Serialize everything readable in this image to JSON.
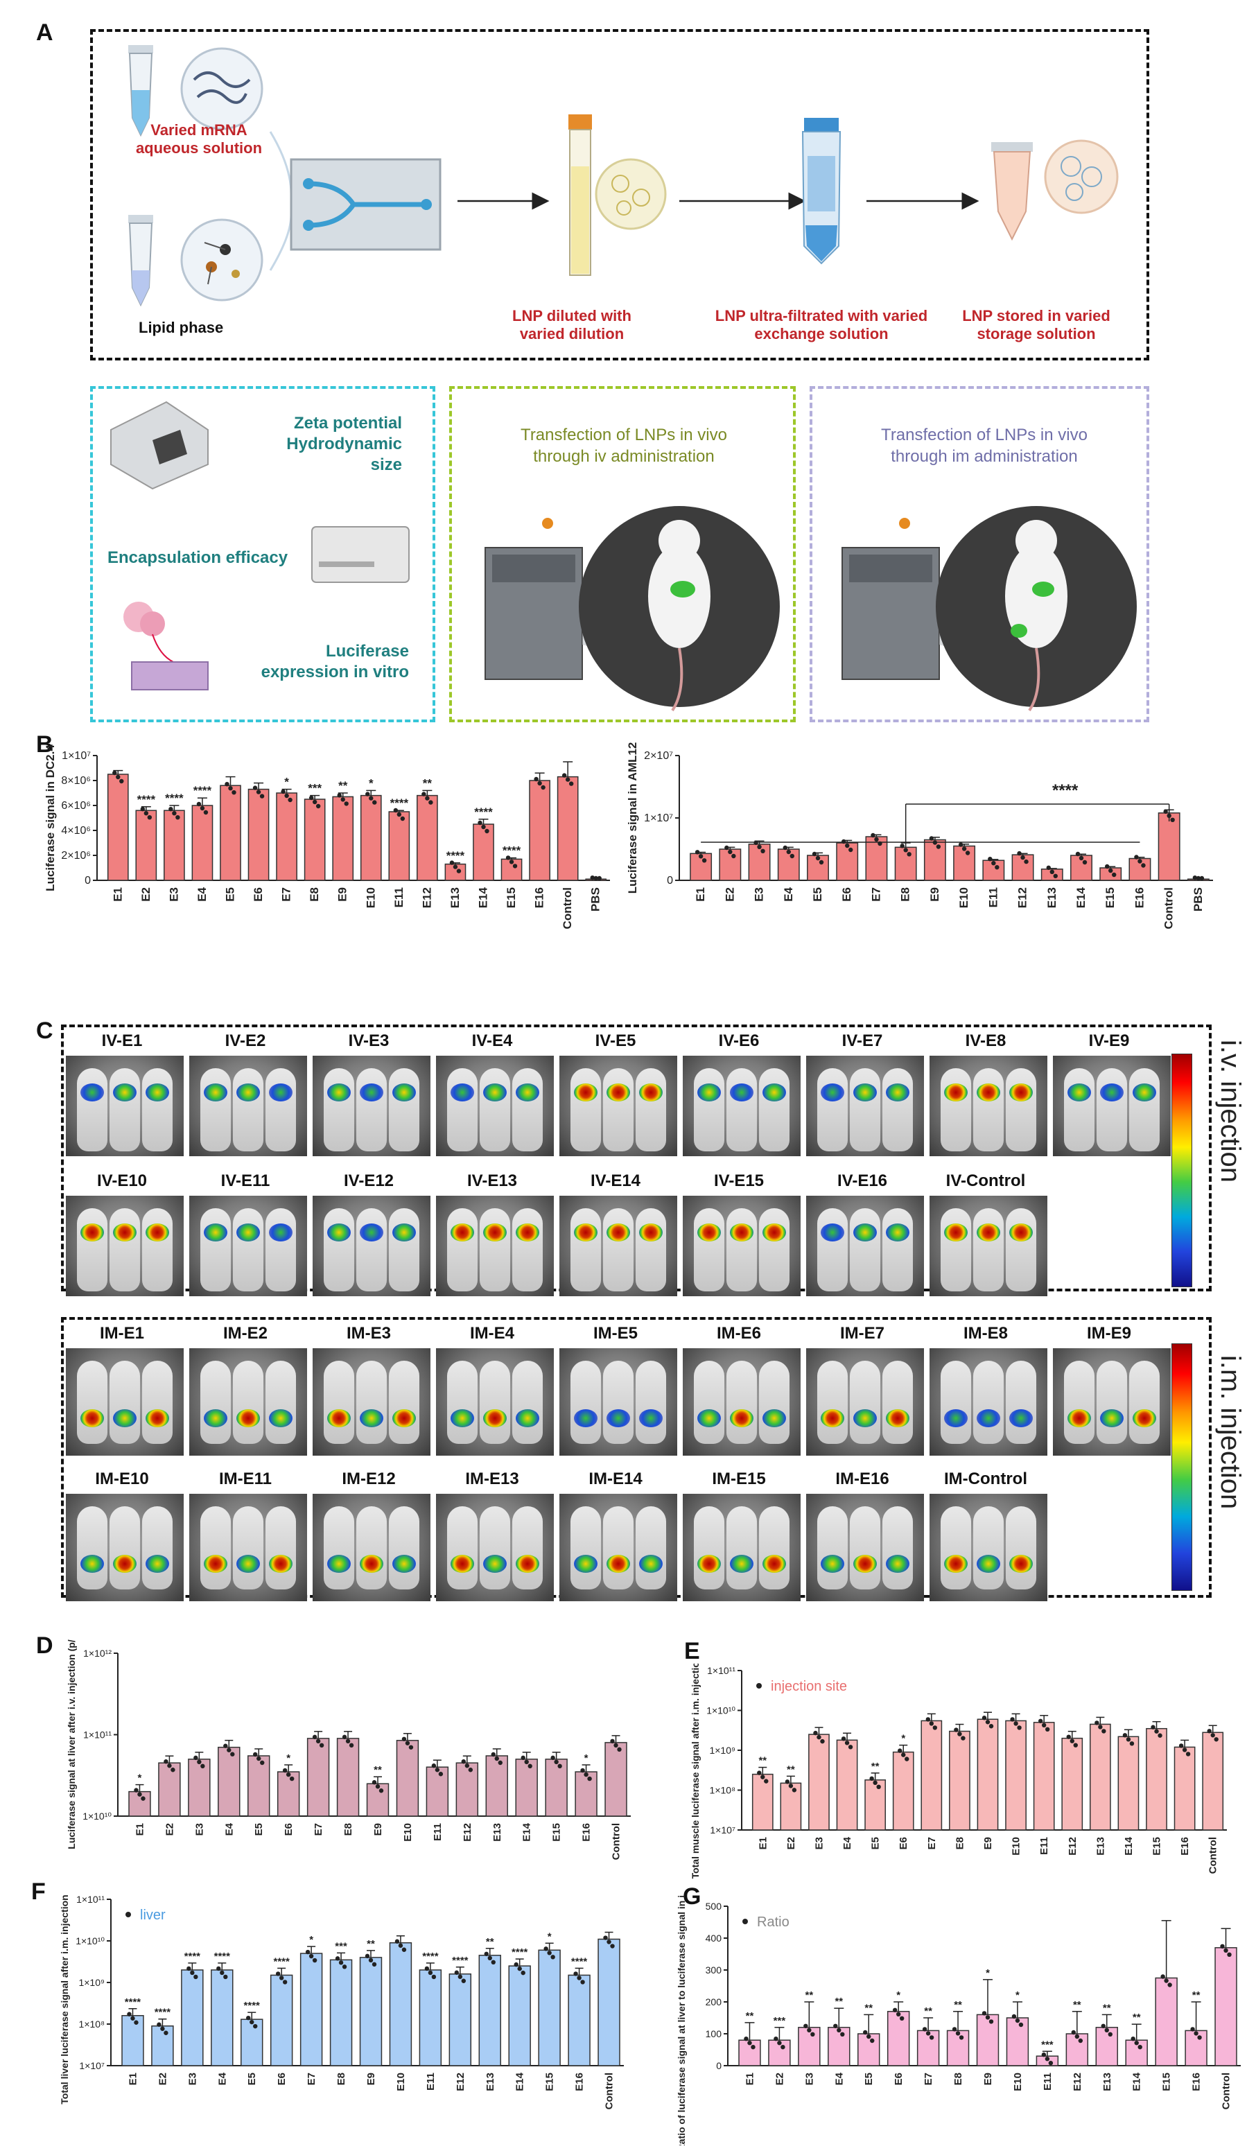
{
  "panels": {
    "A": "A",
    "B": "B",
    "C": "C",
    "D": "D",
    "E": "E",
    "F": "F",
    "G": "G"
  },
  "panelA": {
    "aqueous": "Varied mRNA aqueous solution",
    "lipid": "Lipid phase",
    "diluted": "LNP diluted with varied dilution",
    "ultra": "LNP ultra-filtrated with varied exchange solution",
    "stored": "LNP stored in varied storage solution",
    "zeta1": "Zeta potential",
    "zeta2": "Hydrodynamic size",
    "encap": "Encapsulation efficacy",
    "luc1": "Luciferase",
    "luc2": "expression in vitro",
    "iv1": "Transfection of LNPs in vivo",
    "iv2": "through iv administration",
    "im1": "Transfection of LNPs in vivo",
    "im2": "through im administration"
  },
  "panelC": {
    "iv_labels": [
      "IV-E1",
      "IV-E2",
      "IV-E3",
      "IV-E4",
      "IV-E5",
      "IV-E6",
      "IV-E7",
      "IV-E8",
      "IV-E9",
      "IV-E10",
      "IV-E11",
      "IV-E12",
      "IV-E13",
      "IV-E14",
      "IV-E15",
      "IV-E16",
      "IV-Control"
    ],
    "im_labels": [
      "IM-E1",
      "IM-E2",
      "IM-E3",
      "IM-E4",
      "IM-E5",
      "IM-E6",
      "IM-E7",
      "IM-E8",
      "IM-E9",
      "IM-E10",
      "IM-E11",
      "IM-E12",
      "IM-E13",
      "IM-E14",
      "IM-E15",
      "IM-E16",
      "IM-Control"
    ],
    "iv_side": "i.v. injection",
    "im_side": "i.m. injection"
  },
  "chart_data": [
    {
      "id": "B1",
      "type": "bar",
      "scale": "linear",
      "ylabel": "Luciferase signal in DC2.4",
      "yticks": [
        "0",
        "2×10⁶",
        "4×10⁶",
        "6×10⁶",
        "8×10⁶",
        "1×10⁷"
      ],
      "ylim": [
        0,
        10000000
      ],
      "categories": [
        "E1",
        "E2",
        "E3",
        "E4",
        "E5",
        "E6",
        "E7",
        "E8",
        "E9",
        "E10",
        "E11",
        "E12",
        "E13",
        "E14",
        "E15",
        "E16",
        "Control",
        "PBS"
      ],
      "values": [
        8500000,
        5600000,
        5600000,
        6000000,
        7600000,
        7300000,
        7000000,
        6500000,
        6700000,
        6800000,
        5500000,
        6800000,
        1300000,
        4500000,
        1700000,
        8000000,
        8300000,
        100000
      ],
      "errors": [
        300000,
        300000,
        400000,
        600000,
        700000,
        500000,
        300000,
        300000,
        300000,
        400000,
        100000,
        400000,
        100000,
        400000,
        100000,
        600000,
        1200000,
        50000
      ],
      "sig": [
        "",
        "****",
        "****",
        "****",
        "",
        "",
        "*",
        "***",
        "**",
        "*",
        "****",
        "**",
        "****",
        "****",
        "****",
        "",
        "",
        ""
      ],
      "color": "#f08080"
    },
    {
      "id": "B2",
      "type": "bar",
      "scale": "linear",
      "ylabel": "Luciferase signal in AML12",
      "yticks": [
        "0",
        "1×10⁷",
        "2×10⁷"
      ],
      "ylim": [
        0,
        20000000
      ],
      "categories": [
        "E1",
        "E2",
        "E3",
        "E4",
        "E5",
        "E6",
        "E7",
        "E8",
        "E9",
        "E10",
        "E11",
        "E12",
        "E13",
        "E14",
        "E15",
        "E16",
        "Control",
        "PBS"
      ],
      "values": [
        4300000,
        5000000,
        5800000,
        5000000,
        4000000,
        6000000,
        7000000,
        5300000,
        6500000,
        5500000,
        3200000,
        4100000,
        1800000,
        4000000,
        2000000,
        3500000,
        10800000,
        200000
      ],
      "errors": [
        200000,
        300000,
        500000,
        300000,
        400000,
        400000,
        300000,
        700000,
        400000,
        300000,
        150000,
        200000,
        100000,
        200000,
        200000,
        200000,
        500000,
        50000
      ],
      "bracket": "****",
      "color": "#f08080"
    },
    {
      "id": "D",
      "type": "bar",
      "scale": "log",
      "ylabel": "Luciferase signal at liver after i.v. injection (p/sec)",
      "yticks": [
        "1×10¹⁰",
        "1×10¹¹",
        "1×10¹²"
      ],
      "ylim_exp": [
        10,
        12
      ],
      "categories": [
        "E1",
        "E2",
        "E3",
        "E4",
        "E5",
        "E6",
        "E7",
        "E8",
        "E9",
        "E10",
        "E11",
        "E12",
        "E13",
        "E14",
        "E15",
        "E16",
        "Control"
      ],
      "values": [
        20000000000,
        45000000000,
        50000000000,
        70000000000,
        55000000000,
        35000000000,
        90000000000,
        90000000000,
        25000000000,
        85000000000,
        40000000000,
        45000000000,
        55000000000,
        50000000000,
        50000000000,
        35000000000,
        80000000000
      ],
      "sig": [
        "*",
        "",
        "",
        "",
        "",
        "*",
        "",
        "",
        "**",
        "",
        "",
        "",
        "",
        "",
        "",
        "*",
        ""
      ],
      "color": "#d8a6b6"
    },
    {
      "id": "E",
      "type": "bar",
      "scale": "log",
      "legend": "injection site",
      "ylabel": "Total muscle luciferase signal after i.m. injection (p/sec)",
      "yticks": [
        "1×10⁷",
        "1×10⁸",
        "1×10⁹",
        "1×10¹⁰",
        "1×10¹¹"
      ],
      "ylim_exp": [
        7,
        11
      ],
      "categories": [
        "E1",
        "E2",
        "E3",
        "E4",
        "E5",
        "E6",
        "E7",
        "E8",
        "E9",
        "E10",
        "E11",
        "E12",
        "E13",
        "E14",
        "E15",
        "E16",
        "Control"
      ],
      "values": [
        250000000,
        150000000,
        2500000000,
        1800000000,
        180000000,
        900000000,
        5500000000,
        3000000000,
        6000000000,
        5500000000,
        5000000000,
        2000000000,
        4500000000,
        2200000000,
        3500000000,
        1200000000,
        2800000000
      ],
      "sig": [
        "**",
        "**",
        "",
        "",
        "**",
        "*",
        "",
        "",
        "",
        "",
        "",
        "",
        "",
        "",
        "",
        "",
        ""
      ],
      "color": "#f7b8b8"
    },
    {
      "id": "F",
      "type": "bar",
      "scale": "log",
      "legend": "liver",
      "ylabel": "Total liver luciferase signal after i.m. injection (p/sec)",
      "yticks": [
        "1×10⁷",
        "1×10⁸",
        "1×10⁹",
        "1×10¹⁰",
        "1×10¹¹"
      ],
      "ylim_exp": [
        7,
        11
      ],
      "categories": [
        "E1",
        "E2",
        "E3",
        "E4",
        "E5",
        "E6",
        "E7",
        "E8",
        "E9",
        "E10",
        "E11",
        "E12",
        "E13",
        "E14",
        "E15",
        "E16",
        "Control"
      ],
      "values": [
        160000000,
        90000000,
        2000000000,
        2000000000,
        130000000,
        1500000000,
        5000000000,
        3500000000,
        4000000000,
        9000000000,
        2000000000,
        1600000000,
        4500000000,
        2500000000,
        6000000000,
        1500000000,
        11000000000
      ],
      "sig": [
        "****",
        "****",
        "****",
        "****",
        "****",
        "****",
        "*",
        "***",
        "**",
        "",
        "****",
        "****",
        "**",
        "****",
        "*",
        "****",
        ""
      ],
      "color": "#a9cdf5"
    },
    {
      "id": "G",
      "type": "bar",
      "scale": "linear",
      "legend": "Ratio",
      "ylabel": "Ratio of luciferase signal at liver to luciferase signal in injection site (%)",
      "yticks": [
        "0",
        "100",
        "200",
        "300",
        "400",
        "500"
      ],
      "ylim": [
        0,
        500
      ],
      "categories": [
        "E1",
        "E2",
        "E3",
        "E4",
        "E5",
        "E6",
        "E7",
        "E8",
        "E9",
        "E10",
        "E11",
        "E12",
        "E13",
        "E14",
        "E15",
        "E16",
        "Control"
      ],
      "values": [
        80,
        80,
        120,
        120,
        100,
        170,
        110,
        110,
        160,
        150,
        30,
        100,
        120,
        80,
        275,
        110,
        370
      ],
      "errors": [
        55,
        40,
        80,
        60,
        60,
        30,
        40,
        60,
        110,
        50,
        15,
        70,
        40,
        50,
        180,
        90,
        60
      ],
      "sig": [
        "**",
        "***",
        "**",
        "**",
        "**",
        "*",
        "**",
        "**",
        "*",
        "*",
        "***",
        "**",
        "**",
        "**",
        "",
        "**",
        ""
      ],
      "color": "#f7b6d8"
    }
  ]
}
